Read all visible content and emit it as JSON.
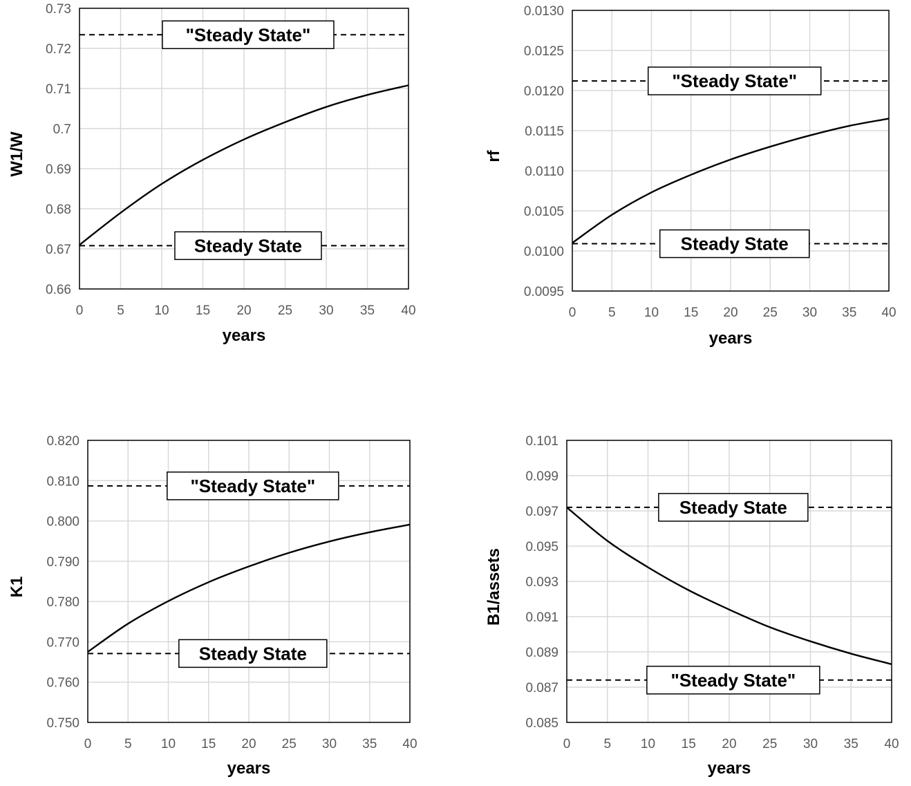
{
  "colors": {
    "grid": "#d9d9d9",
    "frame": "#000000",
    "series": "#000000",
    "reference": "#000000",
    "tick_text": "#595959"
  },
  "chart_data": [
    {
      "type": "line",
      "xlabel": "years",
      "ylabel": "W1/W",
      "xlim": [
        0,
        40
      ],
      "ylim": [
        0.66,
        0.73
      ],
      "xticks": [
        0,
        5,
        10,
        15,
        20,
        25,
        30,
        35,
        40
      ],
      "xtick_labels": [
        "0",
        "5",
        "10",
        "15",
        "20",
        "25",
        "30",
        "35",
        "40"
      ],
      "yticks": [
        0.66,
        0.67,
        0.68,
        0.69,
        0.7,
        0.71,
        0.72,
        0.73
      ],
      "ytick_labels": [
        "0.66",
        "0.67",
        "0.68",
        "0.69",
        "0.7",
        "0.71",
        "0.72",
        "0.73"
      ],
      "grid": true,
      "series": [
        {
          "x": [
            0,
            5,
            10,
            15,
            20,
            25,
            30,
            35,
            40
          ],
          "values": [
            0.671,
            0.679,
            0.6862,
            0.6922,
            0.6973,
            0.7016,
            0.7054,
            0.7084,
            0.7108
          ],
          "style": "solid"
        }
      ],
      "reference_lines": [
        {
          "y": 0.7234,
          "style": "dashed",
          "label": "\"Steady State\"",
          "label_x": 20.5
        },
        {
          "y": 0.6708,
          "style": "dashed",
          "label": "Steady State",
          "label_x": 20.5
        }
      ]
    },
    {
      "type": "line",
      "xlabel": "years",
      "ylabel": "rf",
      "xlim": [
        0,
        40
      ],
      "ylim": [
        0.0095,
        0.013
      ],
      "xticks": [
        0,
        5,
        10,
        15,
        20,
        25,
        30,
        35,
        40
      ],
      "xtick_labels": [
        "0",
        "5",
        "10",
        "15",
        "20",
        "25",
        "30",
        "35",
        "40"
      ],
      "yticks": [
        0.0095,
        0.01,
        0.0105,
        0.011,
        0.0115,
        0.012,
        0.0125,
        0.013
      ],
      "ytick_labels": [
        "0.0095",
        "0.0100",
        "0.0105",
        "0.0110",
        "0.0115",
        "0.0120",
        "0.0125",
        "0.0130"
      ],
      "grid": true,
      "series": [
        {
          "x": [
            0,
            5,
            10,
            15,
            20,
            25,
            30,
            35,
            40
          ],
          "values": [
            0.0101,
            0.01045,
            0.01073,
            0.01095,
            0.01114,
            0.0113,
            0.01144,
            0.01156,
            0.01165
          ],
          "style": "solid"
        }
      ],
      "reference_lines": [
        {
          "y": 0.01212,
          "style": "dashed",
          "label": "\"Steady State\"",
          "label_x": 20.5
        },
        {
          "y": 0.01009,
          "style": "dashed",
          "label": "Steady State",
          "label_x": 20.5
        }
      ]
    },
    {
      "type": "line",
      "xlabel": "years",
      "ylabel": "K1",
      "xlim": [
        0,
        40
      ],
      "ylim": [
        0.75,
        0.82
      ],
      "xticks": [
        0,
        5,
        10,
        15,
        20,
        25,
        30,
        35,
        40
      ],
      "xtick_labels": [
        "0",
        "5",
        "10",
        "15",
        "20",
        "25",
        "30",
        "35",
        "40"
      ],
      "yticks": [
        0.75,
        0.76,
        0.77,
        0.78,
        0.79,
        0.8,
        0.81,
        0.82
      ],
      "ytick_labels": [
        "0.750",
        "0.760",
        "0.770",
        "0.780",
        "0.790",
        "0.800",
        "0.810",
        "0.820"
      ],
      "grid": true,
      "series": [
        {
          "x": [
            0,
            5,
            10,
            15,
            20,
            25,
            30,
            35,
            40
          ],
          "values": [
            0.7675,
            0.7745,
            0.7801,
            0.7848,
            0.7887,
            0.7921,
            0.7949,
            0.7972,
            0.7991
          ],
          "style": "solid"
        }
      ],
      "reference_lines": [
        {
          "y": 0.8087,
          "style": "dashed",
          "label": "\"Steady State\"",
          "label_x": 20.5
        },
        {
          "y": 0.7671,
          "style": "dashed",
          "label": "Steady State",
          "label_x": 20.5
        }
      ]
    },
    {
      "type": "line",
      "xlabel": "years",
      "ylabel": "B1/assets",
      "xlim": [
        0,
        40
      ],
      "ylim": [
        0.085,
        0.101
      ],
      "xticks": [
        0,
        5,
        10,
        15,
        20,
        25,
        30,
        35,
        40
      ],
      "xtick_labels": [
        "0",
        "5",
        "10",
        "15",
        "20",
        "25",
        "30",
        "35",
        "40"
      ],
      "yticks": [
        0.085,
        0.087,
        0.089,
        0.091,
        0.093,
        0.095,
        0.097,
        0.099,
        0.101
      ],
      "ytick_labels": [
        "0.085",
        "0.087",
        "0.089",
        "0.091",
        "0.093",
        "0.095",
        "0.097",
        "0.099",
        "0.101"
      ],
      "grid": true,
      "series": [
        {
          "x": [
            0,
            5,
            10,
            15,
            20,
            25,
            30,
            35,
            40
          ],
          "values": [
            0.0972,
            0.0953,
            0.0938,
            0.0925,
            0.0914,
            0.0904,
            0.0896,
            0.0889,
            0.0883
          ],
          "style": "solid"
        }
      ],
      "reference_lines": [
        {
          "y": 0.0972,
          "style": "dashed",
          "label": "Steady State",
          "label_x": 20.5
        },
        {
          "y": 0.0874,
          "style": "dashed",
          "label": "\"Steady State\"",
          "label_x": 20.5
        }
      ]
    }
  ]
}
